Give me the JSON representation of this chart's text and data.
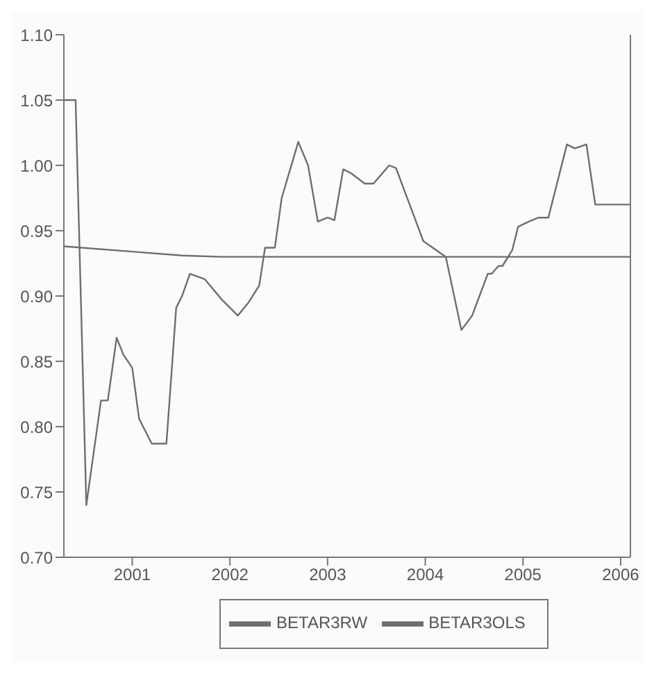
{
  "chart_data": {
    "type": "line",
    "xlim": [
      2000.3,
      2006.1
    ],
    "xticks": [
      2001,
      2002,
      2003,
      2004,
      2005,
      2006
    ],
    "ylim": [
      0.7,
      1.1
    ],
    "yticks": [
      {
        "value": 0.7,
        "label": "0.70"
      },
      {
        "value": 0.75,
        "label": "0.75"
      },
      {
        "value": 0.8,
        "label": "0.80"
      },
      {
        "value": 0.85,
        "label": "0.85"
      },
      {
        "value": 0.9,
        "label": "0.90"
      },
      {
        "value": 0.95,
        "label": "0.95"
      },
      {
        "value": 1.0,
        "label": "1.00"
      },
      {
        "value": 1.05,
        "label": "1.05"
      },
      {
        "value": 1.1,
        "label": "1.10"
      }
    ],
    "grid": false,
    "legend": "bottom",
    "marker": "none",
    "line_style": "solid",
    "series": [
      {
        "name": "BETAR3RW",
        "color": "#6e6e6e",
        "x": [
          2000.3,
          2000.42,
          2000.53,
          2000.68,
          2000.75,
          2000.84,
          2000.91,
          2001.0,
          2001.07,
          2001.2,
          2001.35,
          2001.45,
          2001.51,
          2001.59,
          2001.74,
          2001.92,
          2002.08,
          2002.19,
          2002.3,
          2002.36,
          2002.46,
          2002.53,
          2002.7,
          2002.8,
          2002.9,
          2003.0,
          2003.07,
          2003.16,
          2003.24,
          2003.38,
          2003.47,
          2003.63,
          2003.7,
          2003.83,
          2003.98,
          2004.17,
          2004.21,
          2004.37,
          2004.48,
          2004.64,
          2004.68,
          2004.75,
          2004.79,
          2004.89,
          2004.95,
          2005.06,
          2005.16,
          2005.26,
          2005.45,
          2005.53,
          2005.65,
          2005.74,
          2006.1
        ],
        "values": [
          1.05,
          1.05,
          0.74,
          0.82,
          0.82,
          0.868,
          0.855,
          0.845,
          0.806,
          0.787,
          0.787,
          0.891,
          0.9,
          0.917,
          0.913,
          0.897,
          0.885,
          0.895,
          0.908,
          0.937,
          0.937,
          0.975,
          1.018,
          1.0,
          0.957,
          0.96,
          0.958,
          0.997,
          0.994,
          0.986,
          0.986,
          1.0,
          0.998,
          0.972,
          0.942,
          0.932,
          0.93,
          0.874,
          0.885,
          0.917,
          0.917,
          0.923,
          0.923,
          0.935,
          0.953,
          0.957,
          0.96,
          0.96,
          1.016,
          1.013,
          1.016,
          0.97,
          0.97
        ]
      },
      {
        "name": "BETAR3OLS",
        "color": "#6e6e6e",
        "x": [
          2000.3,
          2001.0,
          2001.51,
          2001.92,
          2006.1
        ],
        "values": [
          0.938,
          0.934,
          0.931,
          0.93,
          0.93
        ]
      }
    ]
  }
}
